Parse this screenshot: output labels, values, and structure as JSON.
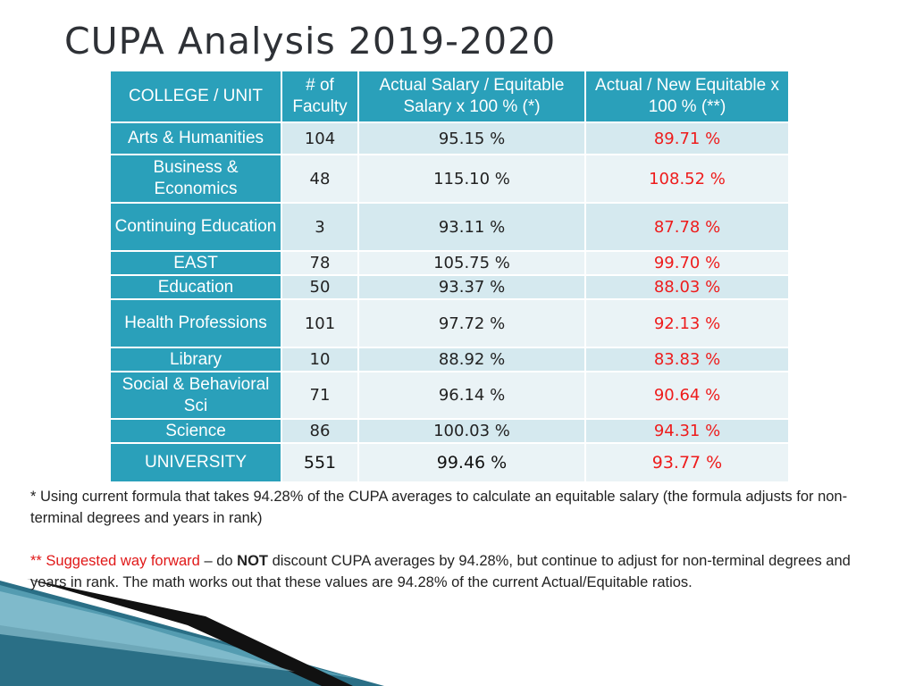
{
  "title": "CUPA Analysis 2019-2020",
  "table": {
    "headers": [
      "COLLEGE / UNIT",
      "# of Faculty",
      "Actual Salary / Equitable Salary x 100 % (*)",
      "Actual / New Equitable x 100 % (**)"
    ],
    "rows": [
      {
        "unit": "Arts & Humanities",
        "faculty": "104",
        "ratio": "95.15 %",
        "new_ratio": "89.71 %"
      },
      {
        "unit": "Business & Economics",
        "faculty": "48",
        "ratio": "115.10 %",
        "new_ratio": "108.52 %"
      },
      {
        "unit": "Continuing Education",
        "faculty": "3",
        "ratio": "93.11 %",
        "new_ratio": "87.78 %"
      },
      {
        "unit": "EAST",
        "faculty": "78",
        "ratio": "105.75 %",
        "new_ratio": "99.70 %"
      },
      {
        "unit": "Education",
        "faculty": "50",
        "ratio": "93.37 %",
        "new_ratio": "88.03 %"
      },
      {
        "unit": "Health Professions",
        "faculty": "101",
        "ratio": "97.72 %",
        "new_ratio": "92.13 %"
      },
      {
        "unit": "Library",
        "faculty": "10",
        "ratio": "88.92 %",
        "new_ratio": "83.83 %"
      },
      {
        "unit": "Social & Behavioral Sci",
        "faculty": "71",
        "ratio": "96.14 %",
        "new_ratio": "90.64 %"
      },
      {
        "unit": "Science",
        "faculty": "86",
        "ratio": "100.03 %",
        "new_ratio": "94.31 %"
      }
    ],
    "total": {
      "unit": "UNIVERSITY",
      "faculty": "551",
      "ratio": "99.46 %",
      "new_ratio": "93.77 %"
    }
  },
  "notes": {
    "note1": "* Using current formula that takes 94.28% of the CUPA averages to calculate an equitable salary (the formula adjusts for non-terminal degrees and years in rank)",
    "note2_label": "** Suggested way forward",
    "note2_dash": " – do ",
    "note2_not": "NOT",
    "note2_rest": " discount CUPA averages by 94.28%, but continue to adjust for non-terminal degrees and years in rank. The math works out that these values are 94.28% of the current Actual/Equitable ratios."
  },
  "colors": {
    "header_bg": "#2aa0ba",
    "row_odd": "#d5e9ef",
    "row_even": "#eaf3f6",
    "highlight_red": "#ee1c1c"
  }
}
